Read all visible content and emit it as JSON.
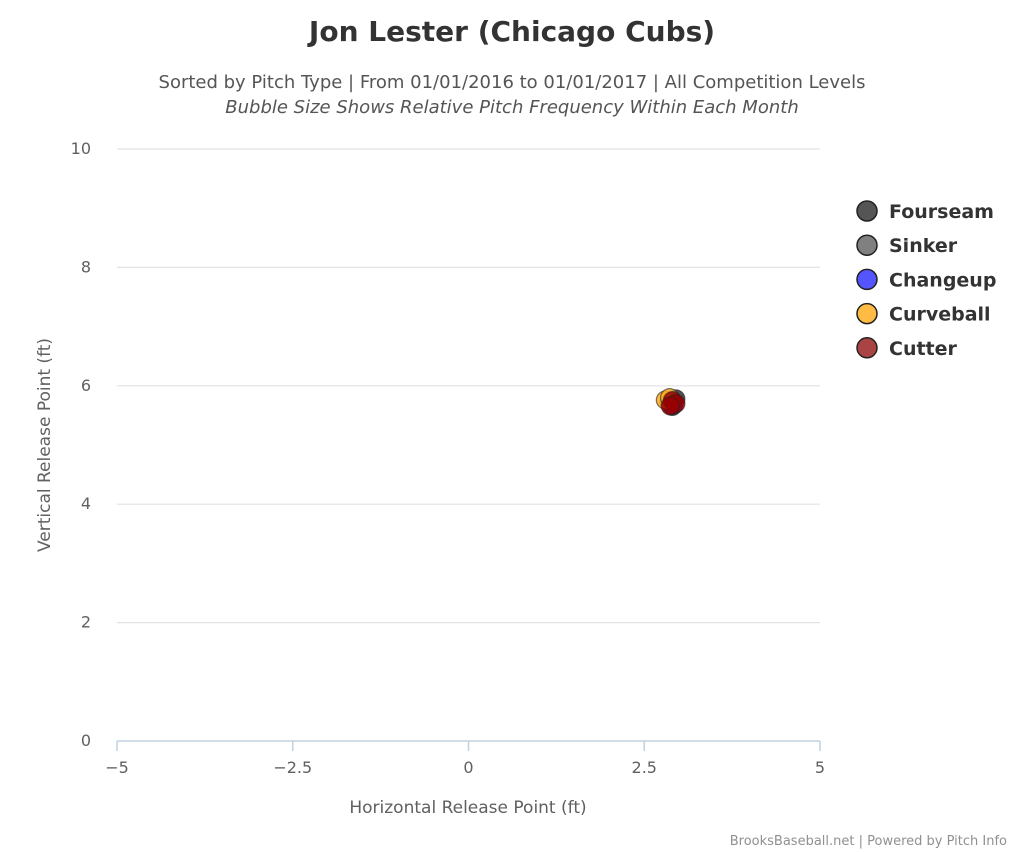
{
  "chart_data": {
    "type": "scatter",
    "title": "Jon Lester (Chicago Cubs)",
    "subtitle": "Sorted by Pitch Type | From 01/01/2016 to 01/01/2017 | All Competition Levels",
    "subtitle2": "Bubble Size Shows Relative Pitch Frequency Within Each Month",
    "xlabel": "Horizontal Release Point (ft)",
    "ylabel": "Vertical Release Point (ft)",
    "xlim": [
      -5,
      5
    ],
    "ylim": [
      0,
      10
    ],
    "x_ticks": [
      "−5",
      "−2.5",
      "0",
      "2.5",
      "5"
    ],
    "x_tick_values": [
      -5,
      -2.5,
      0,
      2.5,
      5
    ],
    "y_ticks": [
      "0",
      "2",
      "4",
      "6",
      "8",
      "10"
    ],
    "y_tick_values": [
      0,
      2,
      4,
      6,
      8,
      10
    ],
    "grid": "horizontal",
    "legend_position": "right",
    "series": [
      {
        "name": "Fourseam",
        "color": "#333333",
        "points": [
          {
            "x": 2.85,
            "y": 5.72
          },
          {
            "x": 2.9,
            "y": 5.65
          },
          {
            "x": 2.95,
            "y": 5.78
          }
        ]
      },
      {
        "name": "Sinker",
        "color": "#777777",
        "points": [
          {
            "x": 2.88,
            "y": 5.7
          }
        ]
      },
      {
        "name": "Changeup",
        "color": "#3333ff",
        "points": [
          {
            "x": 2.92,
            "y": 5.68
          }
        ]
      },
      {
        "name": "Curveball",
        "color": "#ffaa22",
        "points": [
          {
            "x": 2.8,
            "y": 5.76
          },
          {
            "x": 2.86,
            "y": 5.8
          }
        ]
      },
      {
        "name": "Cutter",
        "color": "#990000",
        "points": [
          {
            "x": 2.9,
            "y": 5.75
          },
          {
            "x": 2.95,
            "y": 5.7
          },
          {
            "x": 2.87,
            "y": 5.66
          }
        ]
      }
    ]
  },
  "credits": "BrooksBaseball.net | Powered by Pitch Info"
}
